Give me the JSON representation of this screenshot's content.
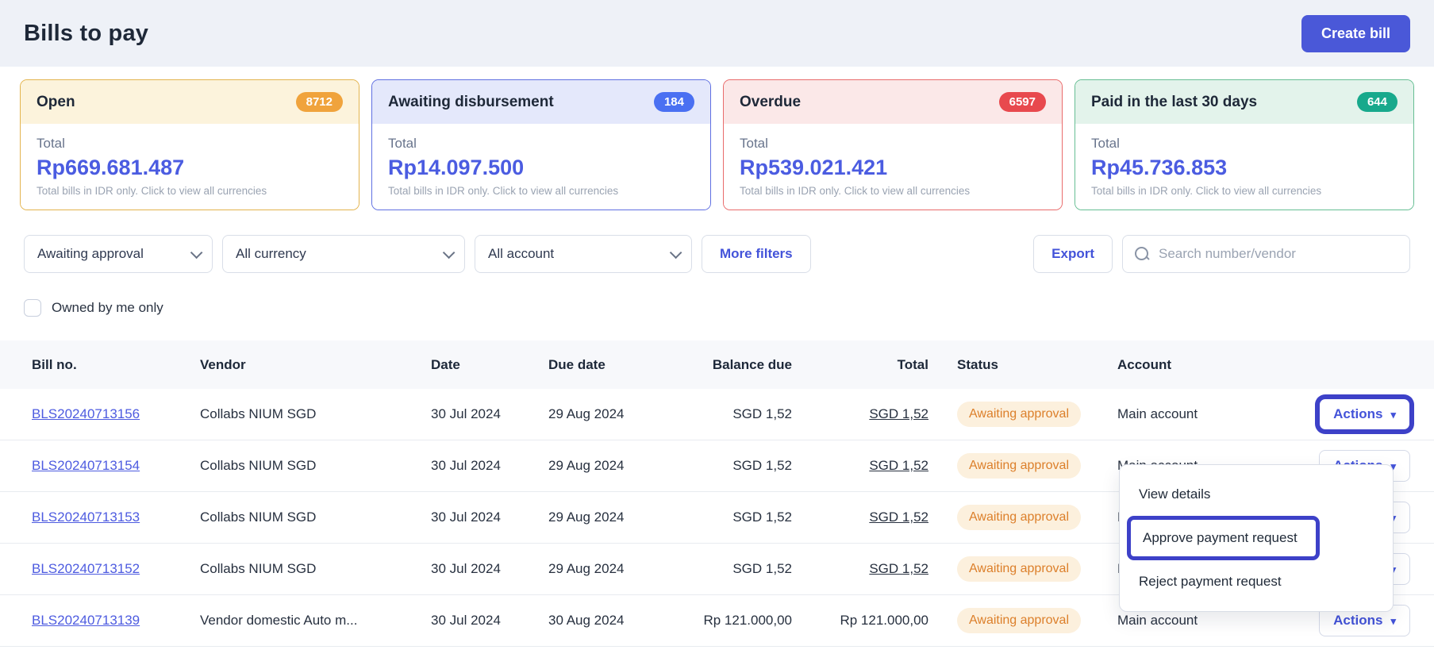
{
  "page": {
    "title": "Bills to pay",
    "create_bill_label": "Create bill"
  },
  "summary_cards": [
    {
      "title": "Open",
      "count": "8712",
      "total_label": "Total",
      "amount": "Rp669.681.487",
      "caption": "Total bills in IDR only. Click to view all currencies",
      "border": "#e3b44e",
      "header_bg": "#fcf3dc",
      "badge_bg": "#f0a33c"
    },
    {
      "title": "Awaiting disbursement",
      "count": "184",
      "total_label": "Total",
      "amount": "Rp14.097.500",
      "caption": "Total bills in IDR only. Click to view all currencies",
      "border": "#5f6fe2",
      "header_bg": "#e4e8fb",
      "badge_bg": "#4a70f2"
    },
    {
      "title": "Overdue",
      "count": "6597",
      "total_label": "Total",
      "amount": "Rp539.021.421",
      "caption": "Total bills in IDR only. Click to view all currencies",
      "border": "#e96b6b",
      "header_bg": "#fbe8e8",
      "badge_bg": "#e8494e"
    },
    {
      "title": "Paid in the last 30 days",
      "count": "644",
      "total_label": "Total",
      "amount": "Rp45.736.853",
      "caption": "Total bills in IDR only. Click to view all currencies",
      "border": "#66be93",
      "header_bg": "#e3f3eb",
      "badge_bg": "#18a98c"
    }
  ],
  "filters": {
    "status_value": "Awaiting approval",
    "currency_value": "All currency",
    "account_value": "All account",
    "more_filters_label": "More filters",
    "export_label": "Export",
    "search_placeholder": "Search number/vendor",
    "owned_by_me_label": "Owned by me only"
  },
  "table": {
    "columns": [
      "Bill no.",
      "Vendor",
      "Date",
      "Due date",
      "Balance due",
      "Total",
      "Status",
      "Account",
      ""
    ],
    "rows": [
      {
        "bill_no": "BLS20240713156",
        "vendor": "Collabs NIUM SGD",
        "date": "30 Jul 2024",
        "due_date": "29 Aug 2024",
        "balance_due": "SGD 1,52",
        "total": "SGD 1,52",
        "status": "Awaiting approval",
        "account": "Main account",
        "actions_label": "Actions"
      },
      {
        "bill_no": "BLS20240713154",
        "vendor": "Collabs NIUM SGD",
        "date": "30 Jul 2024",
        "due_date": "29 Aug 2024",
        "balance_due": "SGD 1,52",
        "total": "SGD 1,52",
        "status": "Awaiting approval",
        "account": "Main account",
        "actions_label": "Actions"
      },
      {
        "bill_no": "BLS20240713153",
        "vendor": "Collabs NIUM SGD",
        "date": "30 Jul 2024",
        "due_date": "29 Aug 2024",
        "balance_due": "SGD 1,52",
        "total": "SGD 1,52",
        "status": "Awaiting approval",
        "account": "Main account",
        "actions_label": "Actions"
      },
      {
        "bill_no": "BLS20240713152",
        "vendor": "Collabs NIUM SGD",
        "date": "30 Jul 2024",
        "due_date": "29 Aug 2024",
        "balance_due": "SGD 1,52",
        "total": "SGD 1,52",
        "status": "Awaiting approval",
        "account": "Main account",
        "actions_label": "Actions"
      },
      {
        "bill_no": "BLS20240713139",
        "vendor": "Vendor domestic Auto m...",
        "date": "30 Jul 2024",
        "due_date": "30 Aug 2024",
        "balance_due": "Rp 121.000,00",
        "total": "Rp 121.000,00",
        "status": "Awaiting approval",
        "account": "Main account",
        "actions_label": "Actions"
      }
    ]
  },
  "actions_menu": {
    "items": [
      "View details",
      "Approve payment request",
      "Reject payment request"
    ],
    "highlighted_item": "Approve payment request"
  }
}
